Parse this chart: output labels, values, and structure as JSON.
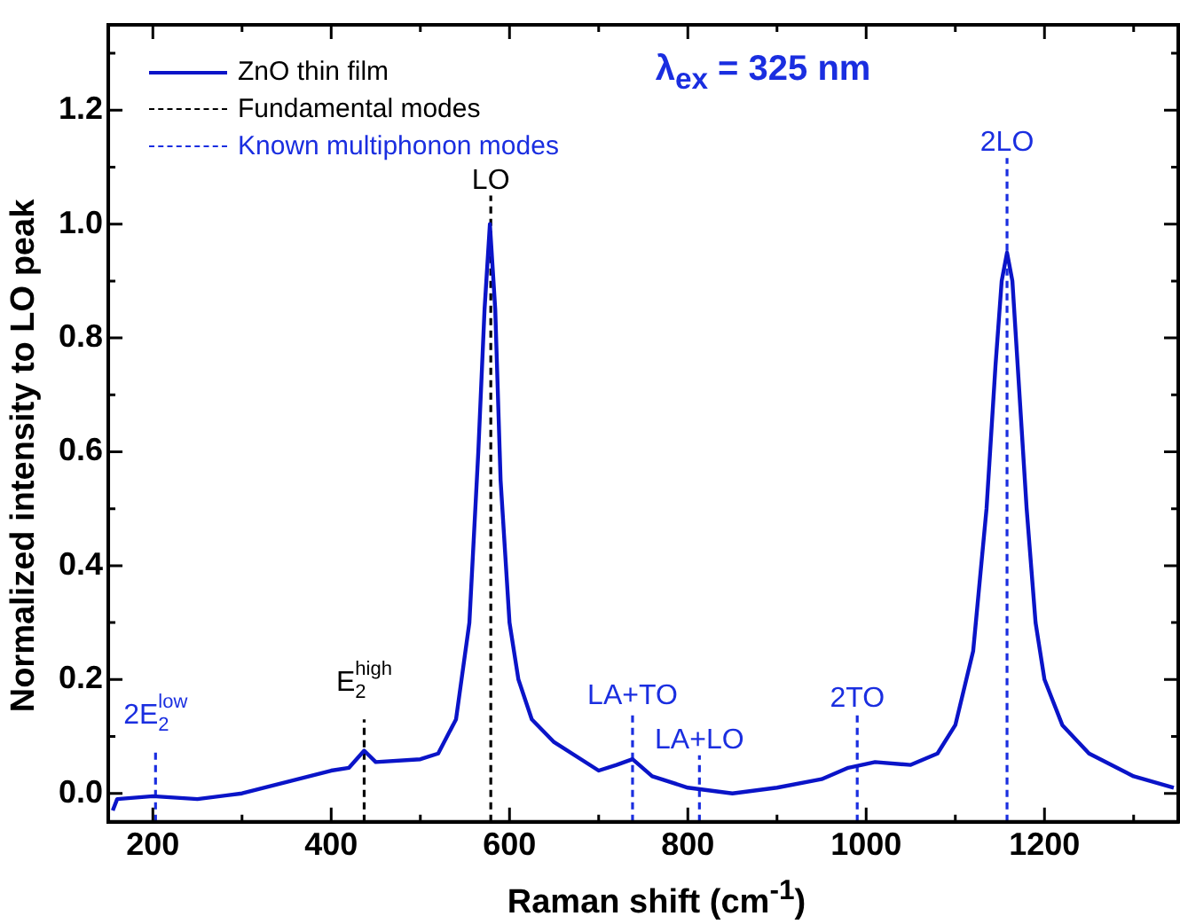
{
  "chart_data": {
    "type": "line",
    "title": "λ$_{ex}$ = 325 nm",
    "xlabel": "Raman shift (cm$^{-1}$)",
    "ylabel": "Normalized intensity to LO peak",
    "xlim": [
      150,
      1350
    ],
    "ylim": [
      -0.05,
      1.35
    ],
    "xticks": [
      {
        "value": 200,
        "label": "200"
      },
      {
        "value": 300,
        "label": null
      },
      {
        "value": 400,
        "label": "400"
      },
      {
        "value": 500,
        "label": null
      },
      {
        "value": 600,
        "label": "600"
      },
      {
        "value": 700,
        "label": null
      },
      {
        "value": 800,
        "label": "800"
      },
      {
        "value": 900,
        "label": null
      },
      {
        "value": 1000,
        "label": "1000"
      },
      {
        "value": 1100,
        "label": null
      },
      {
        "value": 1200,
        "label": "1200"
      },
      {
        "value": 1300,
        "label": null
      }
    ],
    "yticks": [
      {
        "value": 0,
        "label": "0.0"
      },
      {
        "value": 0.1,
        "label": null
      },
      {
        "value": 0.2,
        "label": "0.2"
      },
      {
        "value": 0.3,
        "label": null
      },
      {
        "value": 0.4,
        "label": "0.4"
      },
      {
        "value": 0.5,
        "label": null
      },
      {
        "value": 0.6,
        "label": "0.6"
      },
      {
        "value": 0.7,
        "label": null
      },
      {
        "value": 0.8,
        "label": "0.8"
      },
      {
        "value": 0.9,
        "label": null
      },
      {
        "value": 1.0,
        "label": "1.0"
      },
      {
        "value": 1.1,
        "label": null
      },
      {
        "value": 1.2,
        "label": "1.2"
      },
      {
        "value": 1.3,
        "label": null
      }
    ],
    "grid": false,
    "legend": "top left",
    "marker": "none",
    "series": [
      {
        "name": "ZnO thin film",
        "color": "#0a14c8",
        "line_style": "solid",
        "x": [
          155,
          160,
          200,
          250,
          300,
          350,
          400,
          420,
          437,
          450,
          500,
          520,
          540,
          555,
          565,
          572,
          578,
          584,
          590,
          600,
          610,
          625,
          650,
          700,
          720,
          738,
          760,
          800,
          850,
          900,
          950,
          980,
          1010,
          1050,
          1080,
          1100,
          1120,
          1135,
          1145,
          1152,
          1158,
          1164,
          1170,
          1180,
          1190,
          1200,
          1220,
          1250,
          1300,
          1345
        ],
        "values": [
          -0.03,
          -0.01,
          -0.005,
          -0.01,
          0.0,
          0.02,
          0.04,
          0.045,
          0.075,
          0.055,
          0.06,
          0.07,
          0.13,
          0.3,
          0.6,
          0.85,
          1.0,
          0.85,
          0.55,
          0.3,
          0.2,
          0.13,
          0.09,
          0.04,
          0.05,
          0.06,
          0.03,
          0.01,
          0.0,
          0.01,
          0.025,
          0.045,
          0.055,
          0.05,
          0.07,
          0.12,
          0.25,
          0.5,
          0.75,
          0.9,
          0.95,
          0.9,
          0.75,
          0.5,
          0.3,
          0.2,
          0.12,
          0.07,
          0.03,
          0.01
        ]
      },
      {
        "name": "Fundamental modes",
        "color": "#000000",
        "line_style": "dashed",
        "x": [
          437,
          437
        ],
        "values": [
          -0.05,
          0.13
        ]
      },
      {
        "color": "#000000",
        "line_style": "dashed",
        "x": [
          579,
          579
        ],
        "values": [
          -0.05,
          1.05
        ]
      },
      {
        "name": "Known multiphonon modes",
        "color": "#1a2ee0",
        "line_style": "dashed",
        "x": [
          203,
          203
        ],
        "values": [
          -0.05,
          0.073
        ]
      },
      {
        "color": "#1a2ee0",
        "line_style": "dashed",
        "x": [
          738,
          738
        ],
        "values": [
          -0.05,
          0.145
        ]
      },
      {
        "color": "#1a2ee0",
        "line_style": "dashed",
        "x": [
          813,
          813
        ],
        "values": [
          -0.05,
          0.067
        ]
      },
      {
        "color": "#1a2ee0",
        "line_style": "dashed",
        "x": [
          990,
          990
        ],
        "values": [
          -0.05,
          0.14
        ]
      },
      {
        "color": "#1a2ee0",
        "line_style": "dashed",
        "x": [
          1158,
          1158
        ],
        "values": [
          -0.05,
          1.116
        ]
      }
    ],
    "annotations": [
      {
        "text": "2E$_{2}$$^{low}$",
        "x": 203,
        "y": 0.073
      },
      {
        "text": "E$_{2}$$^{high}$",
        "x": 437,
        "y": 0.13
      },
      {
        "text": "LO",
        "x": 579,
        "y": 1.05
      },
      {
        "text": "LA+TO",
        "x": 738,
        "y": 0.145
      },
      {
        "text": "LA+LO",
        "x": 813,
        "y": 0.067
      },
      {
        "text": "2TO",
        "x": 990,
        "y": 0.14
      },
      {
        "text": "2LO",
        "x": 1158,
        "y": 1.116
      }
    ]
  }
}
